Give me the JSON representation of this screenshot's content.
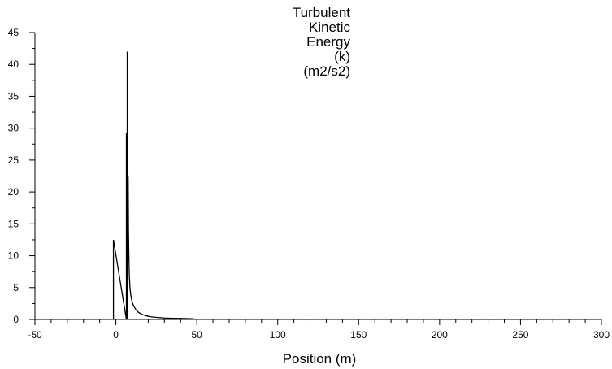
{
  "chart_data": {
    "type": "line",
    "title": "",
    "xlabel": "Position (m)",
    "ylabel_lines": [
      "Turbulent",
      "Kinetic",
      "Energy",
      "(k)",
      "(m2/s2)"
    ],
    "xlim": [
      -50,
      300
    ],
    "ylim": [
      0,
      45
    ],
    "xticks": [
      -50,
      0,
      50,
      100,
      150,
      200,
      250,
      300
    ],
    "yticks": [
      0,
      5,
      10,
      15,
      20,
      25,
      30,
      35,
      40,
      45
    ],
    "grid": false,
    "legend": "none",
    "series": [
      {
        "x": [
          -1.5,
          -1.5,
          6.5,
          6.5,
          7.0,
          7.0,
          7.4,
          7.6,
          7.8,
          8.0,
          8.3,
          8.7,
          9.3,
          10.0,
          11.0,
          12.5,
          14.0,
          16.0,
          19.0,
          22.0,
          26.0,
          30.0,
          35.0,
          40.0,
          45.0,
          48.0,
          48.0
        ],
        "y": [
          0,
          12.5,
          0,
          29.2,
          0,
          42.0,
          22.8,
          22.3,
          14.0,
          10.5,
          7.0,
          5.0,
          3.7,
          2.8,
          2.1,
          1.5,
          1.1,
          0.8,
          0.55,
          0.4,
          0.3,
          0.22,
          0.18,
          0.15,
          0.12,
          0.1,
          0
        ]
      }
    ],
    "colors": {
      "line": "#000000",
      "axis": "#000000"
    }
  }
}
